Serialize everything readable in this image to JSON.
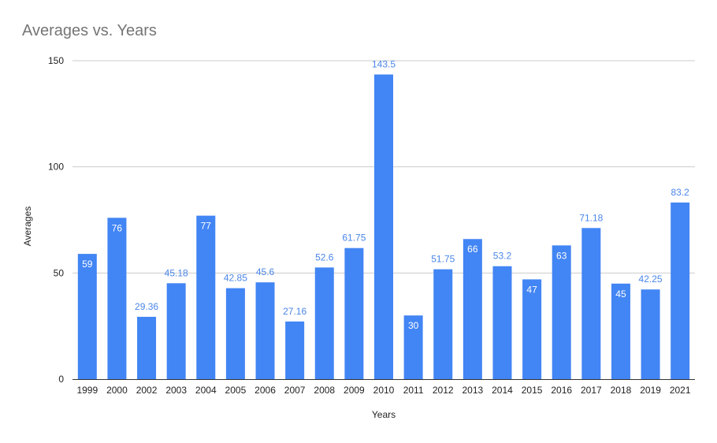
{
  "chart_data": {
    "type": "bar",
    "title": "Averages vs. Years",
    "xlabel": "Years",
    "ylabel": "Averages",
    "ylim": [
      0,
      150
    ],
    "yticks": [
      "0",
      "50",
      "100",
      "150"
    ],
    "grid": true,
    "legend": "none",
    "color": "#4285f4",
    "categories": [
      "1999",
      "2000",
      "2002",
      "2003",
      "2004",
      "2005",
      "2006",
      "2007",
      "2008",
      "2009",
      "2010",
      "2011",
      "2012",
      "2013",
      "2014",
      "2015",
      "2016",
      "2017",
      "2018",
      "2019",
      "2021"
    ],
    "values": [
      59,
      76,
      29.36,
      45.18,
      77,
      42.85,
      45.6,
      27.16,
      52.6,
      61.75,
      143.5,
      30,
      51.75,
      66,
      53.2,
      47,
      63,
      71.18,
      45,
      42.25,
      83.2
    ],
    "data_labels": [
      "59",
      "76",
      "29.36",
      "45.18",
      "77",
      "42.85",
      "45.6",
      "27.16",
      "52.6",
      "61.75",
      "143.5",
      "30",
      "51.75",
      "66",
      "53.2",
      "47",
      "63",
      "71.18",
      "45",
      "42.25",
      "83.2"
    ],
    "label_inside": [
      true,
      true,
      false,
      false,
      true,
      false,
      false,
      false,
      false,
      false,
      false,
      true,
      false,
      true,
      false,
      true,
      true,
      false,
      true,
      false,
      false
    ]
  }
}
